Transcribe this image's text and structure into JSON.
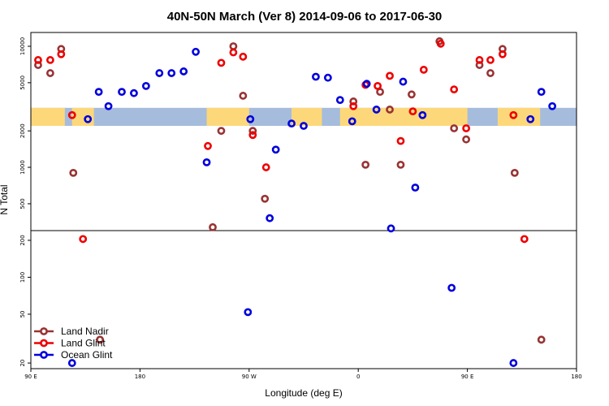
{
  "chart_data": {
    "type": "scatter",
    "title": "40N-50N March (Ver 8)   2014-09-06 to 2017-06-30",
    "xlabel": "Longitude (deg E)",
    "ylabel": "N Total",
    "x_ticks": [
      {
        "value": 90,
        "label": "90 E"
      },
      {
        "value": 180,
        "label": "180"
      },
      {
        "value": 270,
        "label": "90 W"
      },
      {
        "value": 360,
        "label": "0"
      },
      {
        "value": 450,
        "label": "90 E"
      },
      {
        "value": 540,
        "label": "180"
      }
    ],
    "xlim": [
      90,
      540
    ],
    "upper_panel": {
      "scale": "log",
      "ylim": [
        300,
        13000
      ],
      "y_ticks": [
        500,
        1000,
        2000,
        5000,
        10000
      ],
      "map_band": [
        2200,
        3100
      ]
    },
    "lower_panel": {
      "scale": "log",
      "ylim": [
        18,
        240
      ],
      "y_ticks": [
        20,
        50,
        100,
        200
      ]
    },
    "colors": {
      "land_nadir": "#993333",
      "land_glint": "#ee0000",
      "ocean_glint": "#0000dd",
      "map_land": "#fdd87a",
      "map_ocean": "#a6bcdc"
    },
    "legend": {
      "position": "bottom-left",
      "entries": [
        {
          "name": "Land Nadir",
          "color": "#993333"
        },
        {
          "name": "Land Glint",
          "color": "#ee0000"
        },
        {
          "name": "Ocean Glint",
          "color": "#0000dd"
        }
      ]
    },
    "series": [
      {
        "name": "Land Nadir",
        "points": [
          [
            96,
            7000
          ],
          [
            106,
            6000
          ],
          [
            115,
            9500
          ],
          [
            125,
            900
          ],
          [
            147,
            31
          ],
          [
            240,
            320
          ],
          [
            247,
            2000
          ],
          [
            257,
            10000
          ],
          [
            265,
            3900
          ],
          [
            273,
            2000
          ],
          [
            283,
            550
          ],
          [
            356,
            3500
          ],
          [
            366,
            1050
          ],
          [
            378,
            4200
          ],
          [
            386,
            3000
          ],
          [
            395,
            1050
          ],
          [
            404,
            4000
          ],
          [
            427,
            11000
          ],
          [
            439,
            2100
          ],
          [
            449,
            1700
          ],
          [
            460,
            7000
          ],
          [
            469,
            6000
          ],
          [
            479,
            9500
          ],
          [
            489,
            900
          ],
          [
            511,
            31
          ]
        ]
      },
      {
        "name": "Land Glint",
        "points": [
          [
            96,
            7700
          ],
          [
            106,
            7700
          ],
          [
            115,
            8600
          ],
          [
            124,
            2700
          ],
          [
            133,
            205
          ],
          [
            236,
            1500
          ],
          [
            247,
            7300
          ],
          [
            257,
            8900
          ],
          [
            265,
            8200
          ],
          [
            273,
            1850
          ],
          [
            284,
            1000
          ],
          [
            356,
            3200
          ],
          [
            366,
            4800
          ],
          [
            376,
            4700
          ],
          [
            386,
            5700
          ],
          [
            395,
            1650
          ],
          [
            405,
            2900
          ],
          [
            414,
            6400
          ],
          [
            428,
            10500
          ],
          [
            439,
            4400
          ],
          [
            449,
            2100
          ],
          [
            460,
            7700
          ],
          [
            469,
            7700
          ],
          [
            479,
            8600
          ],
          [
            488,
            2700
          ],
          [
            497,
            205
          ]
        ]
      },
      {
        "name": "Ocean Glint",
        "points": [
          [
            124,
            20
          ],
          [
            137,
            2500
          ],
          [
            146,
            4200
          ],
          [
            154,
            3200
          ],
          [
            165,
            4200
          ],
          [
            175,
            4100
          ],
          [
            185,
            4700
          ],
          [
            196,
            6000
          ],
          [
            206,
            6000
          ],
          [
            216,
            6200
          ],
          [
            226,
            9000
          ],
          [
            235,
            1100
          ],
          [
            269,
            52
          ],
          [
            271,
            2500
          ],
          [
            287,
            380
          ],
          [
            292,
            1400
          ],
          [
            305,
            2300
          ],
          [
            315,
            2200
          ],
          [
            325,
            5600
          ],
          [
            335,
            5500
          ],
          [
            345,
            3600
          ],
          [
            355,
            2400
          ],
          [
            367,
            4900
          ],
          [
            375,
            3000
          ],
          [
            387,
            250
          ],
          [
            397,
            5100
          ],
          [
            407,
            680
          ],
          [
            413,
            2700
          ],
          [
            437,
            82
          ],
          [
            488,
            20
          ],
          [
            502,
            2500
          ],
          [
            511,
            4200
          ],
          [
            520,
            3200
          ]
        ]
      }
    ]
  }
}
